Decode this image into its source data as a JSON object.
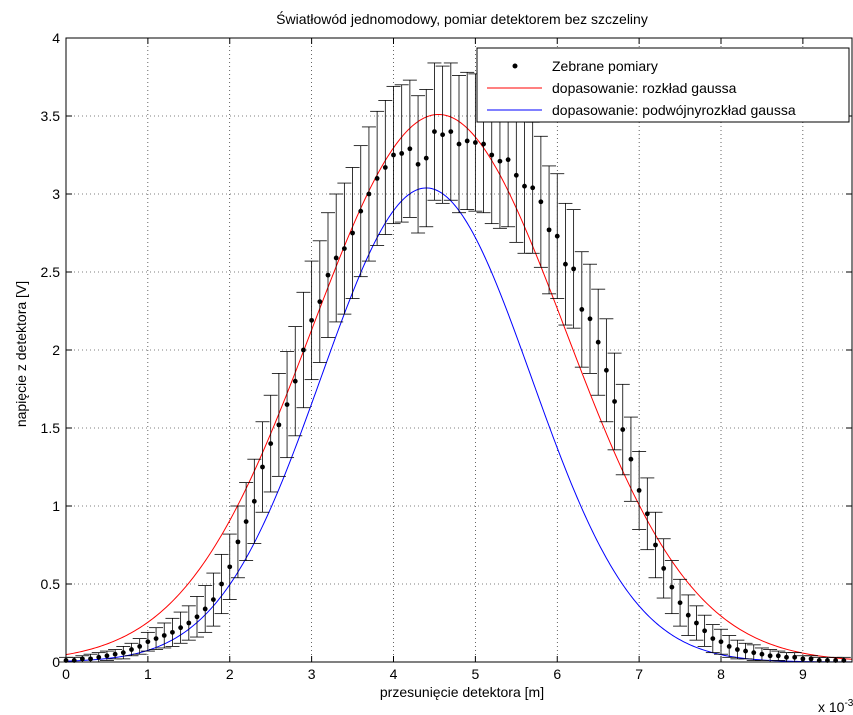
{
  "chart_data": {
    "type": "line",
    "title": "Światłowód jednomodowy, pomiar detektorem bez szczeliny",
    "xlabel": "przesunięcie detektora [m]",
    "ylabel": "napięcie z detektora [V]",
    "x_multiplier": "x 10",
    "x_multiplier_exp": "-3",
    "xlim": [
      0,
      9.6
    ],
    "ylim": [
      0,
      4
    ],
    "x_unit_scale": 0.001,
    "xticks": [
      0,
      1,
      2,
      3,
      4,
      5,
      6,
      7,
      8,
      9
    ],
    "yticks": [
      0,
      0.5,
      1,
      1.5,
      2,
      2.5,
      3,
      3.5,
      4
    ],
    "xtick_labels": [
      "0",
      "1",
      "2",
      "3",
      "4",
      "5",
      "6",
      "7",
      "8",
      "9"
    ],
    "ytick_labels": [
      "0",
      "0.5",
      "1",
      "1.5",
      "2",
      "2.5",
      "3",
      "3.5",
      "4"
    ],
    "grid": true,
    "legend_position": "top-right",
    "series": [
      {
        "name": "Zebrane pomiary",
        "type": "scatter_errorbar",
        "color": "#000000",
        "x": [
          0,
          0.1,
          0.2,
          0.3,
          0.4,
          0.5,
          0.6,
          0.7,
          0.8,
          0.9,
          1.0,
          1.1,
          1.2,
          1.3,
          1.4,
          1.5,
          1.6,
          1.7,
          1.8,
          1.9,
          2.0,
          2.1,
          2.2,
          2.3,
          2.4,
          2.5,
          2.6,
          2.7,
          2.8,
          2.9,
          3.0,
          3.1,
          3.2,
          3.3,
          3.4,
          3.5,
          3.6,
          3.7,
          3.8,
          3.9,
          4.0,
          4.1,
          4.2,
          4.3,
          4.4,
          4.5,
          4.6,
          4.7,
          4.8,
          4.9,
          5.0,
          5.1,
          5.2,
          5.3,
          5.4,
          5.5,
          5.6,
          5.7,
          5.8,
          5.9,
          6.0,
          6.1,
          6.2,
          6.3,
          6.4,
          6.5,
          6.6,
          6.7,
          6.8,
          6.9,
          7.0,
          7.1,
          7.2,
          7.3,
          7.4,
          7.5,
          7.6,
          7.7,
          7.8,
          7.9,
          8.0,
          8.1,
          8.2,
          8.3,
          8.4,
          8.5,
          8.6,
          8.7,
          8.8,
          8.9,
          9.0,
          9.1,
          9.2,
          9.3,
          9.4,
          9.5
        ],
        "y": [
          0.01,
          0.01,
          0.02,
          0.02,
          0.03,
          0.04,
          0.05,
          0.06,
          0.08,
          0.1,
          0.13,
          0.15,
          0.17,
          0.19,
          0.22,
          0.25,
          0.29,
          0.34,
          0.4,
          0.5,
          0.61,
          0.77,
          0.9,
          1.03,
          1.25,
          1.4,
          1.52,
          1.65,
          1.8,
          2.0,
          2.19,
          2.31,
          2.48,
          2.59,
          2.65,
          2.75,
          2.89,
          3.0,
          3.1,
          3.17,
          3.25,
          3.26,
          3.29,
          3.19,
          3.23,
          3.4,
          3.38,
          3.4,
          3.32,
          3.34,
          3.33,
          3.32,
          3.25,
          3.21,
          3.22,
          3.12,
          3.05,
          3.04,
          2.95,
          2.77,
          2.73,
          2.55,
          2.52,
          2.26,
          2.2,
          2.05,
          1.87,
          1.67,
          1.49,
          1.3,
          1.1,
          0.95,
          0.75,
          0.6,
          0.48,
          0.38,
          0.3,
          0.25,
          0.2,
          0.15,
          0.13,
          0.1,
          0.08,
          0.07,
          0.06,
          0.05,
          0.04,
          0.04,
          0.03,
          0.03,
          0.02,
          0.02,
          0.01,
          0.01,
          0.01,
          0.01
        ],
        "err": [
          0.02,
          0.02,
          0.02,
          0.03,
          0.03,
          0.03,
          0.03,
          0.04,
          0.04,
          0.05,
          0.06,
          0.07,
          0.08,
          0.09,
          0.1,
          0.11,
          0.13,
          0.15,
          0.17,
          0.19,
          0.21,
          0.23,
          0.25,
          0.27,
          0.29,
          0.31,
          0.33,
          0.34,
          0.35,
          0.37,
          0.38,
          0.39,
          0.4,
          0.41,
          0.42,
          0.42,
          0.42,
          0.43,
          0.43,
          0.43,
          0.44,
          0.44,
          0.44,
          0.44,
          0.44,
          0.44,
          0.44,
          0.44,
          0.44,
          0.44,
          0.44,
          0.44,
          0.44,
          0.43,
          0.43,
          0.43,
          0.43,
          0.42,
          0.42,
          0.41,
          0.4,
          0.39,
          0.38,
          0.37,
          0.35,
          0.34,
          0.33,
          0.31,
          0.29,
          0.27,
          0.25,
          0.23,
          0.21,
          0.19,
          0.17,
          0.15,
          0.13,
          0.11,
          0.1,
          0.09,
          0.08,
          0.07,
          0.06,
          0.05,
          0.05,
          0.04,
          0.04,
          0.03,
          0.03,
          0.03,
          0.02,
          0.02,
          0.02,
          0.02,
          0.02,
          0.02
        ]
      },
      {
        "name": "dopasowanie: rozkład gaussa",
        "type": "line",
        "color": "#ff0000",
        "model": "gauss",
        "amplitude": 3.51,
        "center": 4.55,
        "sigma": 1.55
      },
      {
        "name": "dopasowanie: podwójnyrozkład gaussa",
        "type": "line",
        "color": "#0000ff",
        "model": "double_gauss",
        "components": [
          {
            "amplitude": 1.67,
            "center": 3.9,
            "sigma": 1.15
          },
          {
            "amplitude": 1.67,
            "center": 4.9,
            "sigma": 1.15
          }
        ]
      }
    ]
  }
}
